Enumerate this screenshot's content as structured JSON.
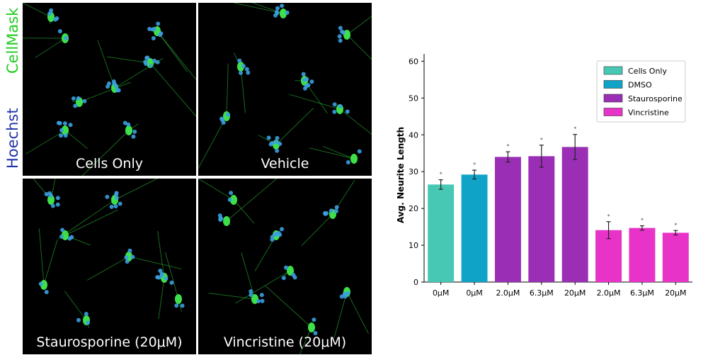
{
  "figure": {
    "stain_labels": [
      {
        "text": "CellMask",
        "color": "#22cc22"
      },
      {
        "text": "Hoechst",
        "color": "#2233aa"
      }
    ],
    "panels": [
      {
        "label": "Cells Only"
      },
      {
        "label": "Vehicle"
      },
      {
        "label": "Staurosporine (20μM)"
      },
      {
        "label": "Vincristine (20μM)"
      }
    ]
  },
  "chart_data": {
    "type": "bar",
    "ylabel": "Avg. Neurite Length",
    "xlabel": "",
    "ylim": [
      0,
      62
    ],
    "yticks": [
      0,
      10,
      20,
      30,
      40,
      50,
      60
    ],
    "categories": [
      "0μM",
      "0μM",
      "2.0μM",
      "6.3μM",
      "20μM",
      "2.0μM",
      "6.3μM",
      "20μM"
    ],
    "values": [
      26.5,
      29.2,
      34.0,
      34.2,
      36.7,
      14.1,
      14.7,
      13.4
    ],
    "errors": [
      1.3,
      1.2,
      1.4,
      3.0,
      3.4,
      2.3,
      0.6,
      0.6
    ],
    "groups": [
      "Cells Only",
      "DMSO",
      "Staurosporine",
      "Staurosporine",
      "Staurosporine",
      "Vincristine",
      "Vincristine",
      "Vincristine"
    ],
    "significance_marker": "*",
    "legend": [
      {
        "name": "Cells Only",
        "color": "#46c8b4"
      },
      {
        "name": "DMSO",
        "color": "#0fa3c8"
      },
      {
        "name": "Staurosporine",
        "color": "#9a2fb6"
      },
      {
        "name": "Vincristine",
        "color": "#e833c8"
      }
    ],
    "legend_position": "top-right",
    "grid": false
  }
}
